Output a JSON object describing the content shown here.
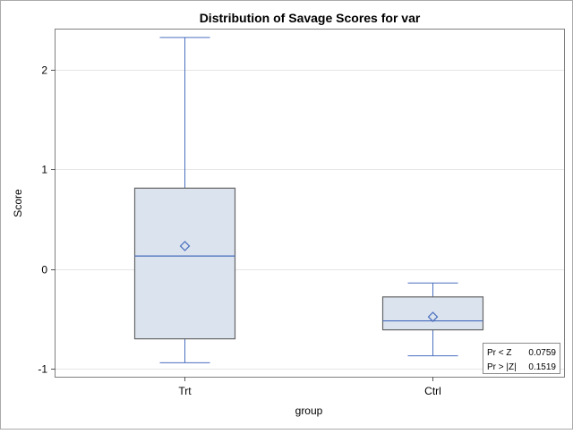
{
  "chart_data": {
    "type": "box",
    "title": "Distribution of Savage Scores for var",
    "xlabel": "group",
    "ylabel": "Score",
    "ylim": [
      -1.08,
      2.4
    ],
    "yticks": [
      -1,
      0,
      1,
      2
    ],
    "ytick_labels": [
      "-1",
      "0",
      "1",
      "2"
    ],
    "grid": "horizontal",
    "categories": [
      "Trt",
      "Ctrl"
    ],
    "boxes": [
      {
        "category": "Trt",
        "whisker_low": -0.94,
        "q1": -0.7,
        "median": 0.13,
        "q3": 0.81,
        "whisker_high": 2.32,
        "mean": 0.23
      },
      {
        "category": "Ctrl",
        "whisker_low": -0.87,
        "q1": -0.61,
        "median": -0.52,
        "q3": -0.28,
        "whisker_high": -0.14,
        "mean": -0.48
      }
    ],
    "inset_table": {
      "rows": [
        {
          "label": "Pr < Z",
          "value": "0.0759"
        },
        {
          "label": "Pr > |Z|",
          "value": "0.1519"
        }
      ],
      "placement": "bottom-right"
    },
    "colors": {
      "box_fill": "#dbe3ee",
      "box_edge": "#666666",
      "accent": "#4a6fbf",
      "gridline": "#e5e5e5",
      "frame": "#7f7f7f"
    }
  }
}
